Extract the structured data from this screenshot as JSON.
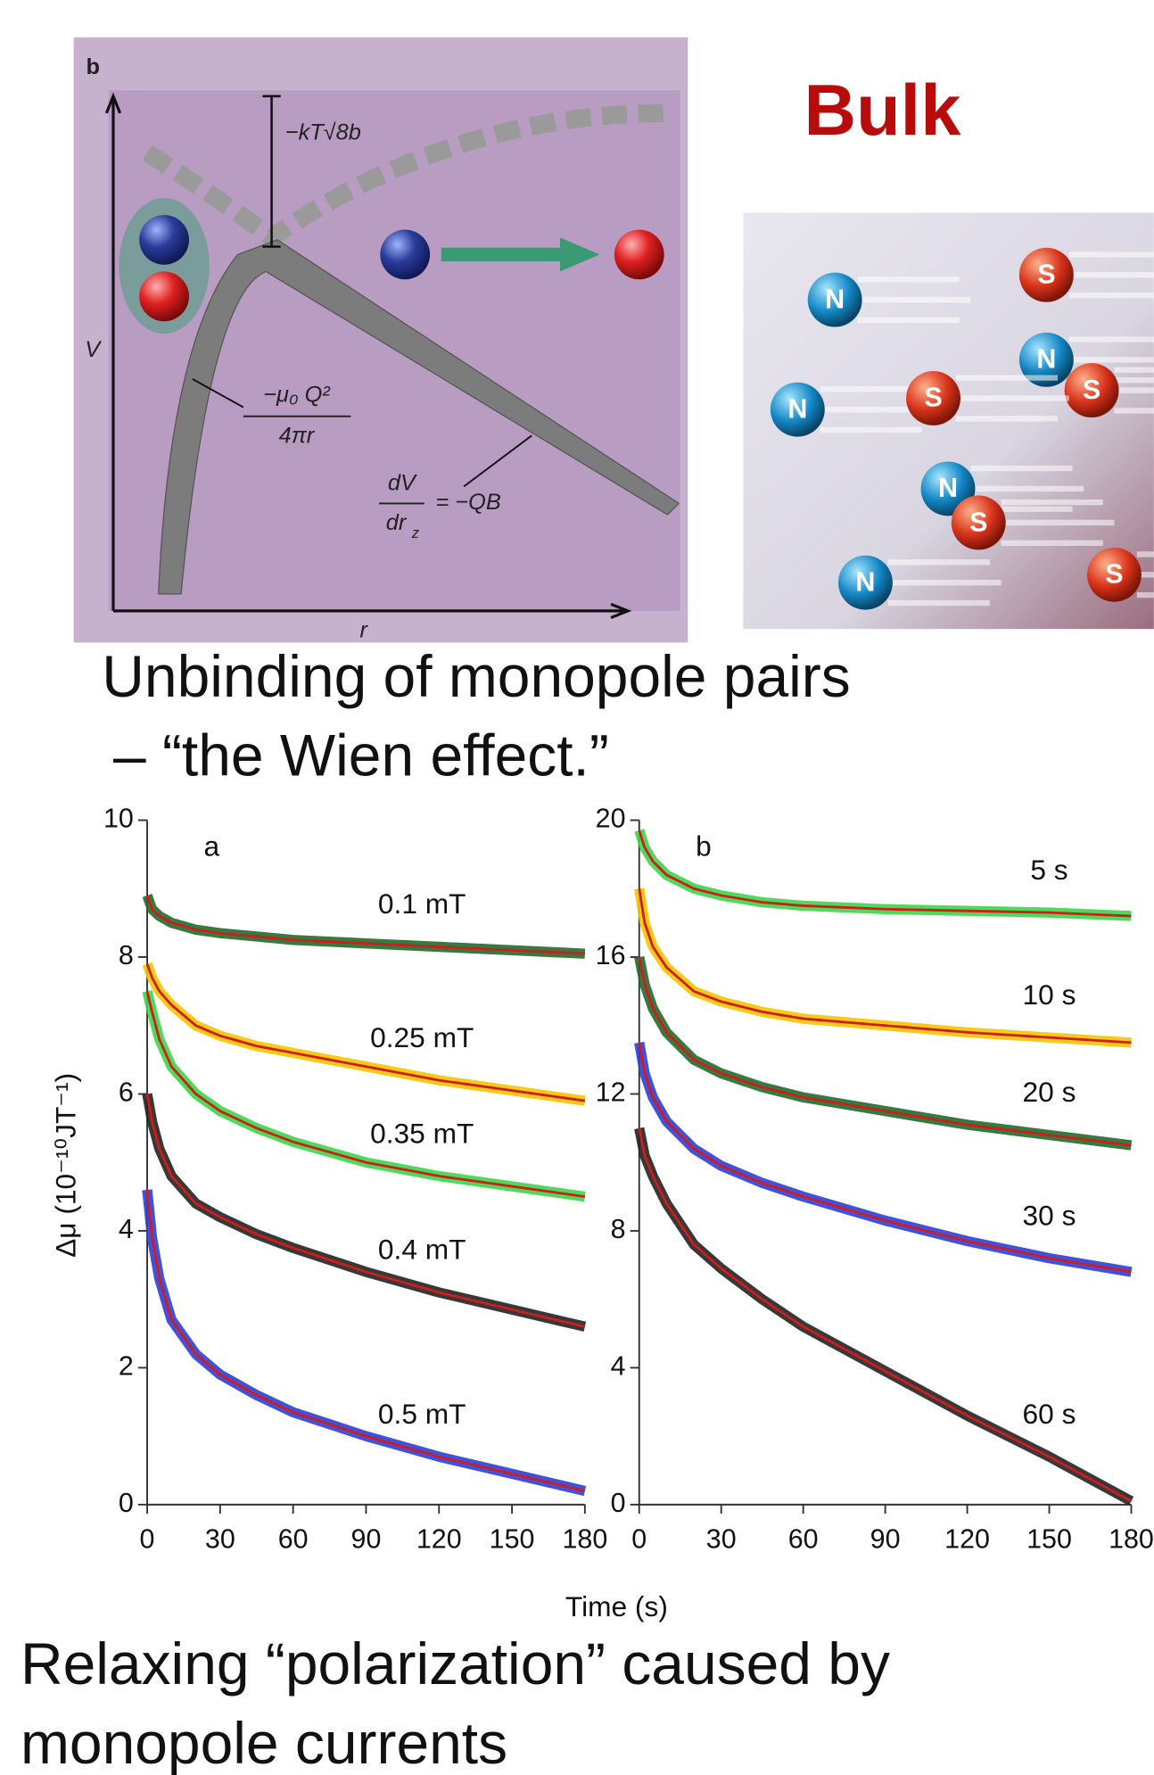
{
  "title": "Bulk",
  "diagram": {
    "panel_label": "b",
    "y_axis": "V",
    "x_axis": "r",
    "barrier_label": "−kT√8b",
    "coulomb_numerator": "−μ₀ Q²",
    "coulomb_denominator": "4πr",
    "field_numerator": "dV",
    "field_denominator": "dr",
    "field_subscript": "z",
    "field_rhs": "= −QB"
  },
  "illustration": {
    "north": "N",
    "south": "S"
  },
  "caption_top": [
    "Unbinding of monopole pairs",
    "– “the Wien effect.”"
  ],
  "y_label": "Δμ (10⁻¹⁰JT⁻¹)",
  "x_label": "Time (s)",
  "caption_bottom": [
    "Relaxing “polarization” caused by",
    "monopole currents"
  ],
  "chart_data": [
    {
      "type": "line",
      "panel_label": "a",
      "fit_color": "#d01c1c",
      "x": [
        0,
        2,
        5,
        10,
        20,
        30,
        45,
        60,
        90,
        120,
        150,
        180
      ],
      "xlim": [
        0,
        180
      ],
      "xticks": [
        0,
        30,
        60,
        90,
        120,
        150,
        180
      ],
      "ylim": [
        0,
        10
      ],
      "yticks": [
        0,
        2,
        4,
        6,
        8,
        10
      ],
      "series": [
        {
          "name": "0.1 mT",
          "color": "#1f6b2a",
          "values": [
            8.9,
            8.7,
            8.6,
            8.5,
            8.4,
            8.35,
            8.3,
            8.25,
            8.2,
            8.15,
            8.1,
            8.05
          ]
        },
        {
          "name": "0.25 mT",
          "color": "#f5c400",
          "values": [
            7.9,
            7.7,
            7.5,
            7.3,
            7.0,
            6.85,
            6.7,
            6.6,
            6.4,
            6.2,
            6.05,
            5.9
          ]
        },
        {
          "name": "0.35 mT",
          "color": "#3cd64a",
          "values": [
            7.5,
            7.2,
            6.8,
            6.4,
            6.0,
            5.75,
            5.5,
            5.3,
            5.0,
            4.8,
            4.65,
            4.5
          ]
        },
        {
          "name": "0.4 mT",
          "color": "#222222",
          "values": [
            6.0,
            5.6,
            5.2,
            4.8,
            4.4,
            4.2,
            3.95,
            3.75,
            3.4,
            3.1,
            2.85,
            2.6
          ]
        },
        {
          "name": "0.5 mT",
          "color": "#2b3fd8",
          "values": [
            4.6,
            3.9,
            3.3,
            2.7,
            2.2,
            1.9,
            1.6,
            1.35,
            1.0,
            0.7,
            0.45,
            0.2
          ]
        }
      ]
    },
    {
      "type": "line",
      "panel_label": "b",
      "fit_color": "#d01c1c",
      "x": [
        0,
        2,
        5,
        10,
        20,
        30,
        45,
        60,
        90,
        120,
        150,
        180
      ],
      "xlim": [
        0,
        180
      ],
      "xticks": [
        0,
        30,
        60,
        90,
        120,
        150,
        180
      ],
      "ylim": [
        0,
        20
      ],
      "yticks": [
        0,
        4,
        8,
        12,
        16,
        20
      ],
      "series": [
        {
          "name": "5 s",
          "color": "#3cd64a",
          "values": [
            19.7,
            19.2,
            18.8,
            18.4,
            18.0,
            17.8,
            17.6,
            17.5,
            17.4,
            17.35,
            17.3,
            17.2
          ]
        },
        {
          "name": "10 s",
          "color": "#f5c400",
          "values": [
            18.0,
            17.0,
            16.3,
            15.7,
            15.0,
            14.7,
            14.4,
            14.2,
            14.0,
            13.8,
            13.65,
            13.5
          ]
        },
        {
          "name": "20 s",
          "color": "#1f6b2a",
          "values": [
            16.0,
            15.2,
            14.5,
            13.8,
            13.0,
            12.6,
            12.2,
            11.9,
            11.5,
            11.1,
            10.8,
            10.5
          ]
        },
        {
          "name": "30 s",
          "color": "#2b3fd8",
          "values": [
            13.5,
            12.6,
            11.9,
            11.2,
            10.4,
            9.9,
            9.4,
            9.0,
            8.3,
            7.7,
            7.2,
            6.8
          ]
        },
        {
          "name": "60 s",
          "color": "#222222",
          "values": [
            11.0,
            10.2,
            9.6,
            8.8,
            7.6,
            6.9,
            6.0,
            5.2,
            3.9,
            2.6,
            1.4,
            0.1
          ]
        }
      ]
    }
  ]
}
